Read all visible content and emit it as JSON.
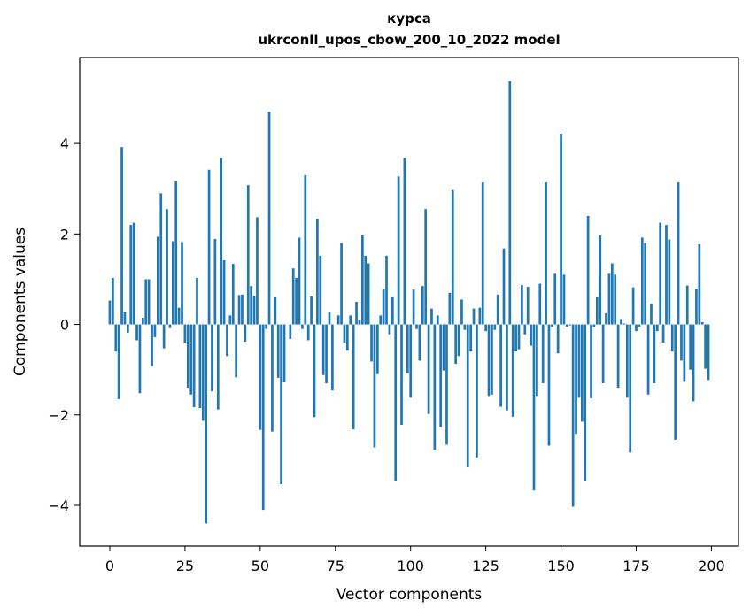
{
  "chart_data": {
    "type": "bar",
    "title_line1": "курса",
    "title_line2": "ukrconll_upos_cbow_200_10_2022 model",
    "xlabel": "Vector components",
    "ylabel": "Components values",
    "xlim": [
      -10,
      209
    ],
    "ylim": [
      -4.9,
      5.9
    ],
    "xticks": [
      0,
      25,
      50,
      75,
      100,
      125,
      150,
      175,
      200
    ],
    "yticks": [
      -4,
      -2,
      0,
      2,
      4
    ],
    "ytick_labels": [
      "−4",
      "−2",
      "0",
      "2",
      "4"
    ],
    "grid": false,
    "bar_color": "#1f77b4",
    "values": [
      0.53,
      1.03,
      -0.6,
      -1.65,
      3.92,
      0.27,
      -0.18,
      2.2,
      2.25,
      -0.35,
      -1.52,
      0.15,
      1.0,
      1.0,
      -0.92,
      -0.28,
      1.94,
      2.9,
      -0.53,
      2.55,
      -0.08,
      1.84,
      3.16,
      0.37,
      1.82,
      -0.42,
      -1.4,
      -1.55,
      -1.83,
      1.03,
      -1.85,
      -2.13,
      -4.4,
      3.42,
      -1.48,
      1.89,
      -1.88,
      3.68,
      1.42,
      -0.7,
      0.2,
      1.34,
      -1.17,
      0.65,
      0.66,
      -0.38,
      3.08,
      0.85,
      0.63,
      2.37,
      -2.33,
      -4.1,
      -0.1,
      4.7,
      -2.37,
      0.6,
      -1.18,
      -3.53,
      -1.28,
      0.0,
      -0.32,
      1.24,
      1.03,
      1.92,
      -0.1,
      3.3,
      -0.35,
      0.62,
      -2.05,
      2.33,
      1.52,
      -1.12,
      -1.3,
      0.28,
      -1.46,
      0.0,
      0.2,
      1.8,
      -0.42,
      -0.58,
      0.2,
      -2.32,
      0.5,
      0.1,
      1.97,
      1.52,
      1.35,
      -0.82,
      -2.72,
      -1.1,
      0.2,
      0.78,
      1.52,
      -0.22,
      0.6,
      -3.47,
      3.27,
      -2.22,
      3.68,
      -1.08,
      -1.62,
      0.77,
      -0.1,
      -0.8,
      0.85,
      2.55,
      -1.98,
      0.35,
      -2.77,
      0.2,
      -2.27,
      -1.02,
      -2.66,
      0.7,
      2.97,
      -0.87,
      -0.7,
      0.55,
      -0.12,
      -3.16,
      -0.6,
      0.35,
      -2.94,
      0.37,
      3.14,
      -0.15,
      -1.58,
      -1.55,
      -0.12,
      0.66,
      -1.82,
      1.68,
      -1.9,
      5.38,
      -2.04,
      -0.6,
      -0.55,
      0.87,
      -0.22,
      0.83,
      -0.47,
      -3.67,
      -1.58,
      0.9,
      -1.3,
      3.14,
      -2.68,
      -0.05,
      1.12,
      -0.64,
      4.22,
      1.1,
      -0.05,
      -0.02,
      -4.03,
      -2.42,
      -1.62,
      -2.15,
      -3.47,
      2.4,
      -1.63,
      -0.05,
      0.6,
      1.97,
      -1.3,
      0.25,
      1.12,
      1.35,
      1.1,
      -1.4,
      0.12,
      0.02,
      -1.62,
      -2.83,
      0.82,
      -0.15,
      -0.05,
      1.92,
      1.8,
      -1.55,
      0.45,
      -1.3,
      -0.15,
      2.25,
      -0.4,
      2.2,
      1.88,
      -0.6,
      -2.55,
      3.14,
      -0.8,
      -1.27,
      0.86,
      -1.0,
      -1.7,
      0.78,
      1.77,
      0.05,
      -0.98,
      -1.23
    ]
  }
}
